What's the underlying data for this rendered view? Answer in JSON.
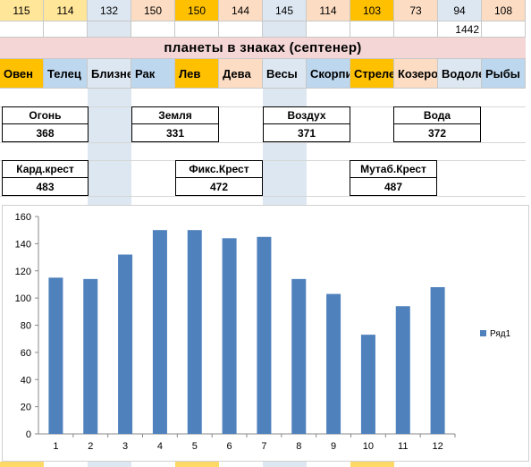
{
  "sheet": {
    "top_values": [
      "115",
      "114",
      "132",
      "150",
      "150",
      "144",
      "145",
      "114",
      "103",
      "73",
      "94",
      "108"
    ],
    "top_colors": [
      "#ffe699",
      "#ffe699",
      "#dde7f1",
      "#fcdcc3",
      "#ffc000",
      "#fcdcc3",
      "#dde7f1",
      "#fcdcc3",
      "#ffc000",
      "#fcdcc3",
      "#dde7f1",
      "#fcdcc3"
    ],
    "total": "1442",
    "title": "планеты в знаках (септенер)",
    "signs": [
      "Овен",
      "Телец",
      "Близнецы",
      "Рак",
      "Лев",
      "Дева",
      "Весы",
      "Скорпион",
      "Стрелец",
      "Козерог",
      "Водолей",
      "Рыбы"
    ],
    "sign_colors": [
      "#ffc000",
      "#bdd7ee",
      "#dde7f1",
      "#bdd7ee",
      "#ffc000",
      "#fcdcc3",
      "#dde7f1",
      "#bdd7ee",
      "#ffc000",
      "#fcdcc3",
      "#dde7f1",
      "#bdd7ee"
    ],
    "elements": [
      {
        "label": "Огонь",
        "value": "368"
      },
      {
        "label": "Земля",
        "value": "331"
      },
      {
        "label": "Воздух",
        "value": "371"
      },
      {
        "label": "Вода",
        "value": "372"
      }
    ],
    "crosses": [
      {
        "label": "Кард.крест",
        "value": "483"
      },
      {
        "label": "Фикс.Крест",
        "value": "472"
      },
      {
        "label": "Мутаб.Крест",
        "value": "487"
      }
    ]
  },
  "chart_data": {
    "type": "bar",
    "categories": [
      "1",
      "2",
      "3",
      "4",
      "5",
      "6",
      "7",
      "8",
      "9",
      "10",
      "11",
      "12"
    ],
    "series": [
      {
        "name": "Ряд1",
        "values": [
          115,
          114,
          132,
          150,
          150,
          144,
          145,
          114,
          103,
          73,
          94,
          108
        ],
        "color": "#4f81bd"
      }
    ],
    "title": "",
    "xlabel": "",
    "ylabel": "",
    "ylim": [
      0,
      160
    ],
    "yticks": [
      "0",
      "20",
      "40",
      "60",
      "80",
      "100",
      "120",
      "140",
      "160"
    ],
    "grid": true,
    "legend": "right"
  }
}
